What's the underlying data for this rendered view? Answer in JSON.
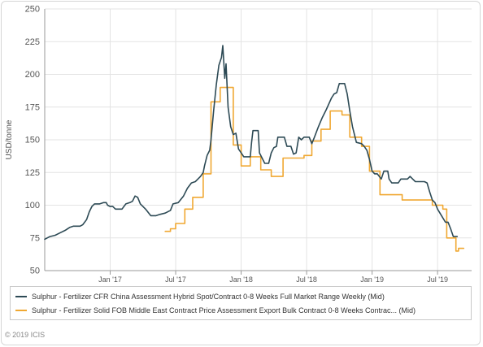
{
  "chart_data": {
    "type": "line",
    "ylabel": "USD/tonne",
    "ylim": [
      50,
      250
    ],
    "yticks": [
      50,
      75,
      100,
      125,
      150,
      175,
      200,
      225,
      250
    ],
    "xlim": [
      2016.5,
      2019.76
    ],
    "xticks": [
      {
        "x": 2017.0,
        "label": "Jan '17"
      },
      {
        "x": 2017.5,
        "label": "Jul '17"
      },
      {
        "x": 2018.0,
        "label": "Jan '18"
      },
      {
        "x": 2018.5,
        "label": "Jul '18"
      },
      {
        "x": 2019.0,
        "label": "Jan '19"
      },
      {
        "x": 2019.5,
        "label": "Jul '19"
      }
    ],
    "grid": true,
    "legend_position": "bottom",
    "series": [
      {
        "name": "Sulphur - Fertilizer CFR China Assessment Hybrid Spot/Contract 0-8 Weeks Full Market Range Weekly (Mid)",
        "color": "#2d4a55",
        "points": [
          [
            2016.5,
            74
          ],
          [
            2016.54,
            76
          ],
          [
            2016.58,
            77
          ],
          [
            2016.62,
            79
          ],
          [
            2016.66,
            81
          ],
          [
            2016.69,
            83
          ],
          [
            2016.72,
            84
          ],
          [
            2016.77,
            84
          ],
          [
            2016.79,
            85
          ],
          [
            2016.82,
            89
          ],
          [
            2016.84,
            95
          ],
          [
            2016.86,
            99
          ],
          [
            2016.88,
            101
          ],
          [
            2016.92,
            101
          ],
          [
            2016.95,
            102
          ],
          [
            2016.97,
            102
          ],
          [
            2016.98,
            100
          ],
          [
            2017.0,
            99
          ],
          [
            2017.02,
            99
          ],
          [
            2017.04,
            97
          ],
          [
            2017.09,
            97
          ],
          [
            2017.12,
            101
          ],
          [
            2017.15,
            102
          ],
          [
            2017.17,
            103
          ],
          [
            2017.19,
            107
          ],
          [
            2017.21,
            106
          ],
          [
            2017.23,
            101
          ],
          [
            2017.27,
            97
          ],
          [
            2017.31,
            92
          ],
          [
            2017.35,
            92
          ],
          [
            2017.38,
            93
          ],
          [
            2017.42,
            94
          ],
          [
            2017.46,
            96
          ],
          [
            2017.48,
            101
          ],
          [
            2017.52,
            102
          ],
          [
            2017.56,
            107
          ],
          [
            2017.59,
            113
          ],
          [
            2017.62,
            117
          ],
          [
            2017.65,
            118
          ],
          [
            2017.67,
            120
          ],
          [
            2017.69,
            122
          ],
          [
            2017.71,
            125
          ],
          [
            2017.72,
            130
          ],
          [
            2017.74,
            138
          ],
          [
            2017.76,
            142
          ],
          [
            2017.77,
            150
          ],
          [
            2017.79,
            172
          ],
          [
            2017.81,
            192
          ],
          [
            2017.83,
            207
          ],
          [
            2017.85,
            213
          ],
          [
            2017.86,
            222
          ],
          [
            2017.875,
            197
          ],
          [
            2017.885,
            208
          ],
          [
            2017.9,
            175
          ],
          [
            2017.92,
            160
          ],
          [
            2017.94,
            154
          ],
          [
            2017.96,
            155
          ],
          [
            2017.97,
            149
          ],
          [
            2017.98,
            143
          ],
          [
            2018.0,
            140
          ],
          [
            2018.02,
            137
          ],
          [
            2018.05,
            137
          ],
          [
            2018.07,
            137
          ],
          [
            2018.08,
            148
          ],
          [
            2018.09,
            157
          ],
          [
            2018.13,
            157
          ],
          [
            2018.14,
            140
          ],
          [
            2018.18,
            132
          ],
          [
            2018.21,
            132
          ],
          [
            2018.23,
            140
          ],
          [
            2018.25,
            144
          ],
          [
            2018.27,
            145
          ],
          [
            2018.28,
            152
          ],
          [
            2018.33,
            152
          ],
          [
            2018.35,
            145
          ],
          [
            2018.38,
            145
          ],
          [
            2018.4,
            139
          ],
          [
            2018.42,
            140
          ],
          [
            2018.44,
            152
          ],
          [
            2018.46,
            150
          ],
          [
            2018.48,
            152
          ],
          [
            2018.52,
            152
          ],
          [
            2018.54,
            147
          ],
          [
            2018.56,
            152
          ],
          [
            2018.59,
            160
          ],
          [
            2018.62,
            167
          ],
          [
            2018.65,
            173
          ],
          [
            2018.69,
            182
          ],
          [
            2018.71,
            185
          ],
          [
            2018.73,
            186
          ],
          [
            2018.75,
            193
          ],
          [
            2018.79,
            193
          ],
          [
            2018.81,
            185
          ],
          [
            2018.83,
            172
          ],
          [
            2018.85,
            160
          ],
          [
            2018.88,
            148
          ],
          [
            2018.92,
            147
          ],
          [
            2018.94,
            145
          ],
          [
            2018.96,
            142
          ],
          [
            2018.98,
            135
          ],
          [
            2019.0,
            126
          ],
          [
            2019.02,
            124
          ],
          [
            2019.04,
            124
          ],
          [
            2019.07,
            120
          ],
          [
            2019.09,
            126
          ],
          [
            2019.12,
            126
          ],
          [
            2019.13,
            120
          ],
          [
            2019.15,
            117
          ],
          [
            2019.2,
            117
          ],
          [
            2019.22,
            120
          ],
          [
            2019.27,
            120
          ],
          [
            2019.29,
            122
          ],
          [
            2019.31,
            120
          ],
          [
            2019.33,
            118
          ],
          [
            2019.4,
            118
          ],
          [
            2019.42,
            117
          ],
          [
            2019.44,
            110
          ],
          [
            2019.46,
            104
          ],
          [
            2019.48,
            102
          ],
          [
            2019.5,
            97
          ],
          [
            2019.53,
            92
          ],
          [
            2019.56,
            87
          ],
          [
            2019.58,
            87
          ],
          [
            2019.6,
            82
          ],
          [
            2019.62,
            76
          ],
          [
            2019.65,
            76
          ]
        ]
      },
      {
        "name": "Sulphur - Fertilizer Solid FOB Middle East Contract Price Assessment Export Bulk Contract 0-8 Weeks Contrac... (Mid)",
        "color": "#f0a832",
        "points": [
          [
            2017.42,
            80
          ],
          [
            2017.46,
            80
          ],
          [
            2017.46,
            82
          ],
          [
            2017.5,
            82
          ],
          [
            2017.5,
            86
          ],
          [
            2017.57,
            86
          ],
          [
            2017.57,
            97
          ],
          [
            2017.63,
            97
          ],
          [
            2017.63,
            106
          ],
          [
            2017.71,
            106
          ],
          [
            2017.71,
            124
          ],
          [
            2017.77,
            124
          ],
          [
            2017.77,
            179
          ],
          [
            2017.84,
            179
          ],
          [
            2017.84,
            190
          ],
          [
            2017.94,
            190
          ],
          [
            2017.94,
            146
          ],
          [
            2018.0,
            146
          ],
          [
            2018.0,
            130
          ],
          [
            2018.07,
            130
          ],
          [
            2018.07,
            137
          ],
          [
            2018.15,
            137
          ],
          [
            2018.15,
            127
          ],
          [
            2018.23,
            127
          ],
          [
            2018.23,
            122
          ],
          [
            2018.32,
            122
          ],
          [
            2018.32,
            136
          ],
          [
            2018.48,
            136
          ],
          [
            2018.48,
            138
          ],
          [
            2018.54,
            138
          ],
          [
            2018.54,
            149
          ],
          [
            2018.61,
            149
          ],
          [
            2018.61,
            158
          ],
          [
            2018.68,
            158
          ],
          [
            2018.68,
            172
          ],
          [
            2018.77,
            172
          ],
          [
            2018.77,
            169
          ],
          [
            2018.83,
            169
          ],
          [
            2018.83,
            152
          ],
          [
            2018.92,
            152
          ],
          [
            2018.92,
            145
          ],
          [
            2018.98,
            145
          ],
          [
            2018.98,
            126
          ],
          [
            2019.06,
            126
          ],
          [
            2019.06,
            108
          ],
          [
            2019.23,
            108
          ],
          [
            2019.23,
            104
          ],
          [
            2019.46,
            104
          ],
          [
            2019.46,
            100
          ],
          [
            2019.54,
            100
          ],
          [
            2019.54,
            97
          ],
          [
            2019.57,
            97
          ],
          [
            2019.57,
            75
          ],
          [
            2019.64,
            75
          ],
          [
            2019.64,
            65
          ],
          [
            2019.66,
            65
          ],
          [
            2019.66,
            67
          ],
          [
            2019.7,
            67
          ]
        ]
      }
    ]
  },
  "legend": {
    "items": [
      {
        "label": "Sulphur - Fertilizer CFR China Assessment Hybrid Spot/Contract 0-8 Weeks Full Market Range Weekly (Mid)",
        "color": "#2d4a55"
      },
      {
        "label": "Sulphur - Fertilizer Solid FOB Middle East Contract Price Assessment Export Bulk Contract 0-8 Weeks Contrac... (Mid)",
        "color": "#f0a832"
      }
    ]
  },
  "footer": {
    "copyright": "© 2019 ICIS"
  }
}
